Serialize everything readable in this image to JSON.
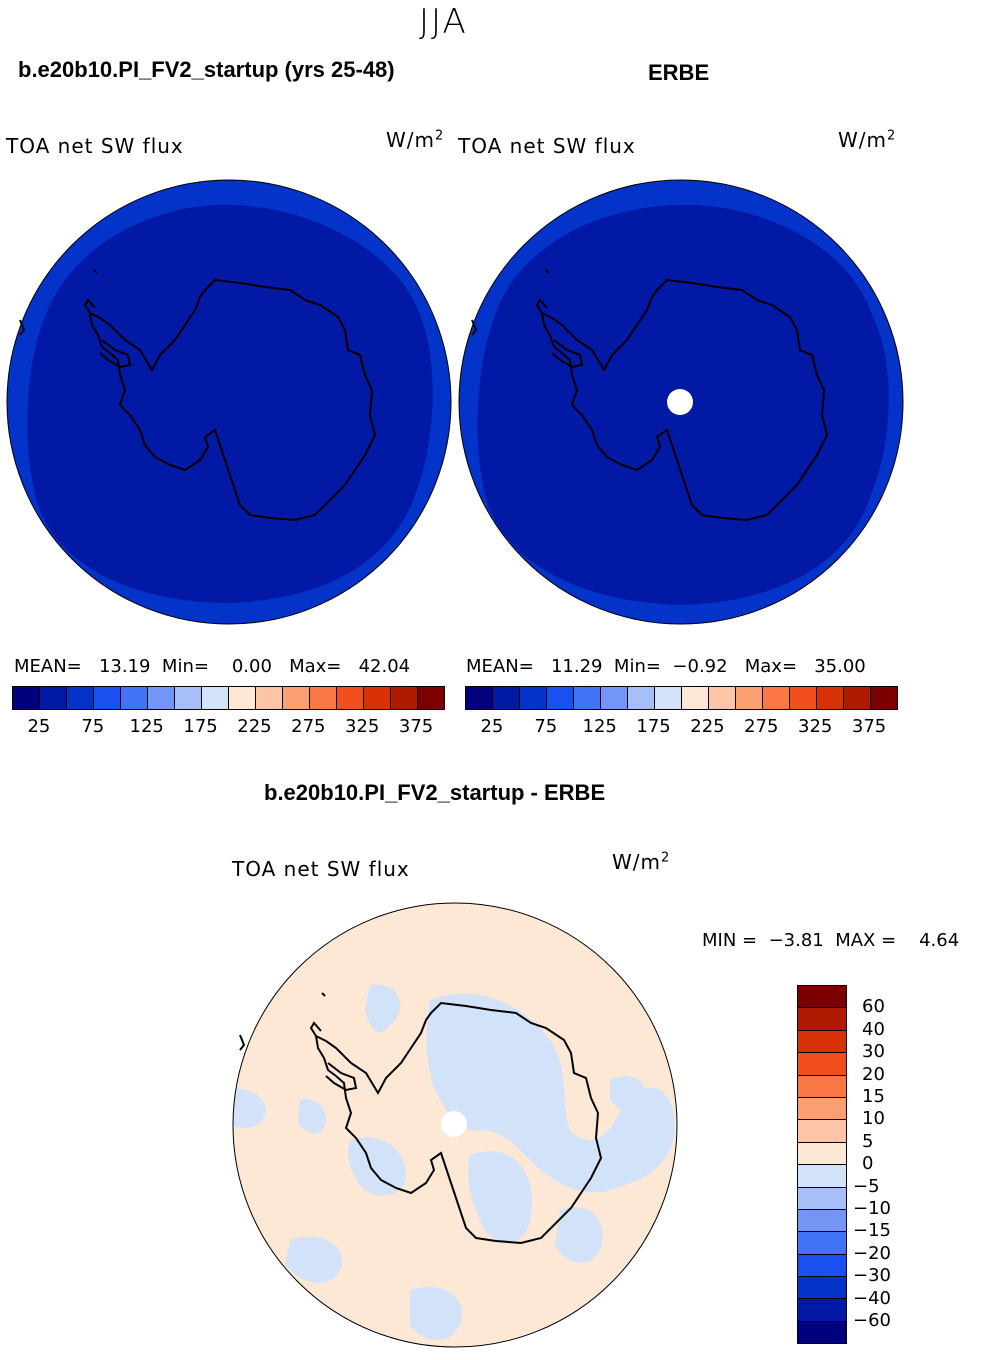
{
  "season": "JJA",
  "panels": [
    {
      "title": "b.e20b10.PI_FV2_startup (yrs 25-48)",
      "var_label": "TOA net SW flux",
      "units_base": "W/m",
      "units_exp": "2",
      "mean_label": "MEAN=",
      "mean": "13.19",
      "min_label": "Min=",
      "min": "0.00",
      "max_label": "Max=",
      "max": "42.04"
    },
    {
      "title": "ERBE",
      "var_label": "TOA net SW flux",
      "units_base": "W/m",
      "units_exp": "2",
      "mean_label": "MEAN=",
      "mean": "11.29",
      "min_label": "Min=",
      "min": "−0.92",
      "max_label": "Max=",
      "max": "35.00"
    }
  ],
  "abs_colorbar": {
    "colors": [
      "#00007f",
      "#0219a6",
      "#0433c9",
      "#1a50ef",
      "#4272f5",
      "#7396f6",
      "#a6bff8",
      "#d1e2f9",
      "#fde8d6",
      "#fcc5a7",
      "#fb9e72",
      "#fa7645",
      "#f14e1d",
      "#d83106",
      "#b01a02",
      "#7d0000"
    ],
    "labels": [
      "25",
      "75",
      "125",
      "175",
      "225",
      "275",
      "325",
      "375"
    ]
  },
  "diff_panel": {
    "title": "b.e20b10.PI_FV2_startup - ERBE",
    "var_label": "TOA net SW flux",
    "units_base": "W/m",
    "units_exp": "2",
    "min_label": "MIN =",
    "min": "−3.81",
    "max_label": "MAX =",
    "max": "4.64"
  },
  "diff_colorbar": {
    "colors_top_to_bottom": [
      "#7d0000",
      "#b01a02",
      "#d83106",
      "#f14e1d",
      "#fa7645",
      "#fb9e72",
      "#fcc5a7",
      "#fde8d6",
      "#d1e2f9",
      "#a6bff8",
      "#7396f6",
      "#4272f5",
      "#1a50ef",
      "#0433c9",
      "#0219a6",
      "#00007f"
    ],
    "labels": [
      "60",
      "40",
      "30",
      "20",
      "15",
      "10",
      "5",
      "0",
      "−5",
      "−10",
      "−15",
      "−20",
      "−30",
      "−40",
      "−60"
    ]
  },
  "map_colors": {
    "abs_outer_ring": "#0433c9",
    "abs_inner": "#0219a6",
    "diff_positive": "#fde8d6",
    "diff_negative": "#d1e2f9",
    "missing": "#ffffff",
    "coastline": "#000000"
  }
}
